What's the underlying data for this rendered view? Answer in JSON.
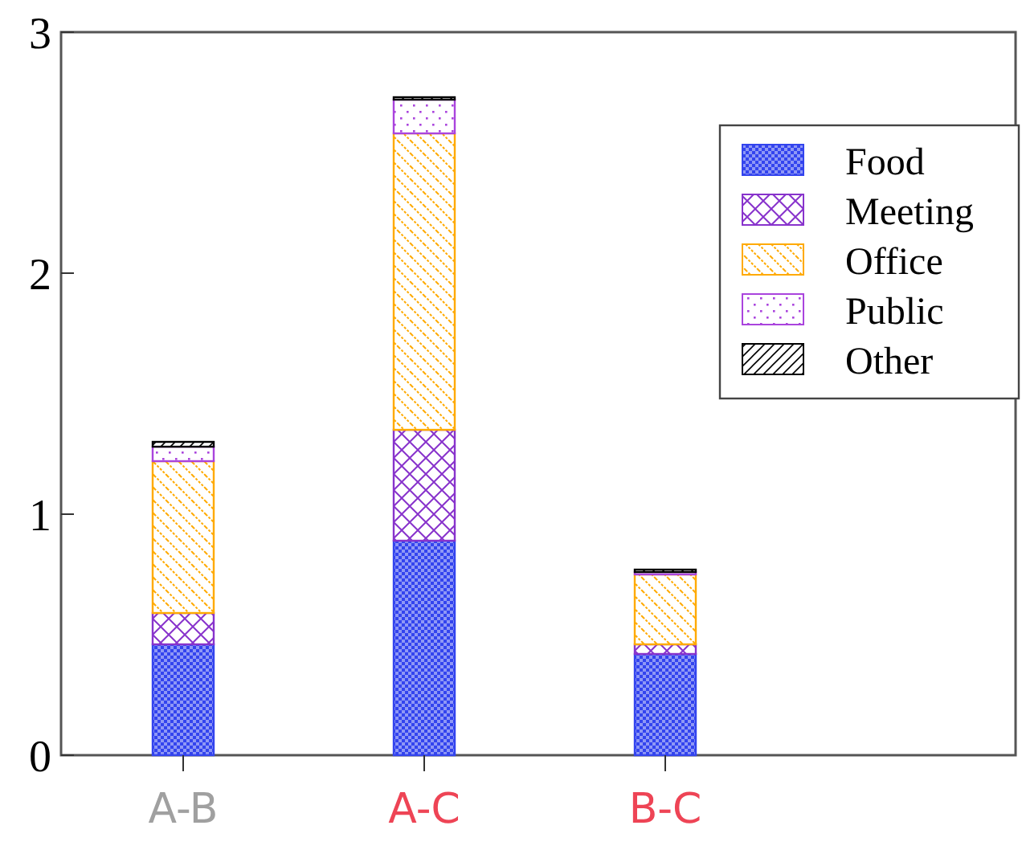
{
  "chart_data": {
    "type": "bar",
    "stacked": true,
    "categories": [
      "A-B",
      "A-C",
      "B-C"
    ],
    "series": [
      {
        "name": "Food",
        "color": "#3344ee",
        "values": [
          0.46,
          0.89,
          0.42
        ]
      },
      {
        "name": "Meeting",
        "color": "#8833cc",
        "values": [
          0.13,
          0.46,
          0.04
        ]
      },
      {
        "name": "Office",
        "color": "#ffaa00",
        "values": [
          0.63,
          1.23,
          0.29
        ]
      },
      {
        "name": "Public",
        "color": "#aa44dd",
        "values": [
          0.06,
          0.14,
          0.01
        ]
      },
      {
        "name": "Other",
        "color": "#000000",
        "values": [
          0.02,
          0.01,
          0.01
        ]
      }
    ],
    "ylim": [
      0,
      3
    ],
    "yticks": [
      0,
      1,
      2,
      3
    ],
    "grid": false,
    "legend": "top right"
  }
}
